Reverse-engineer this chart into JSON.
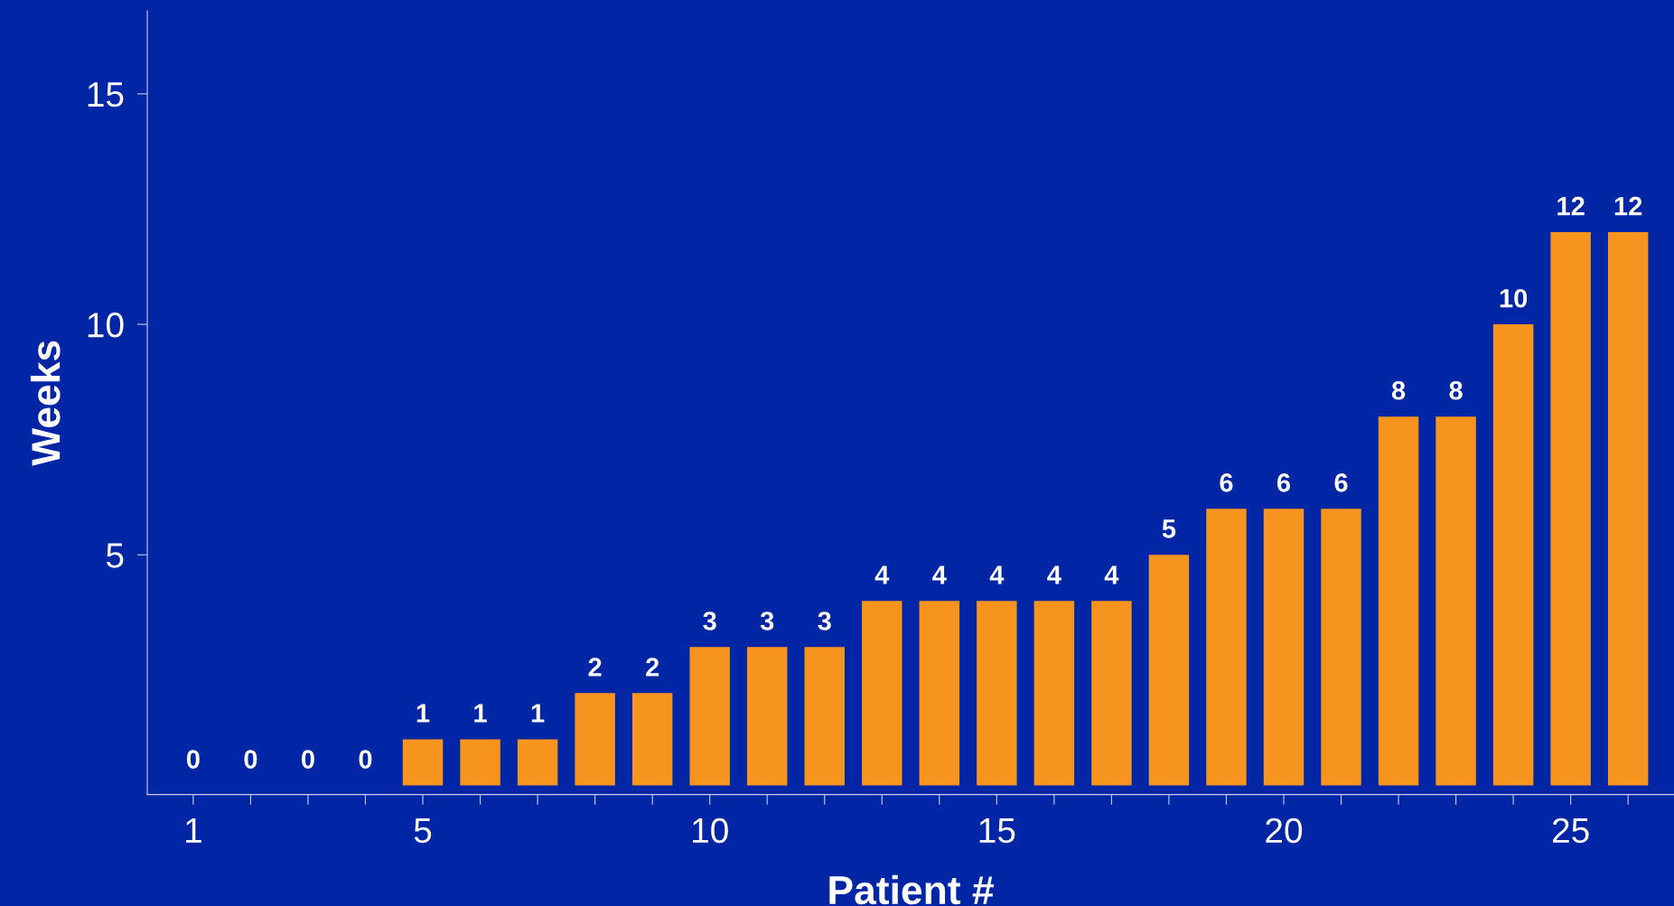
{
  "chart_data": {
    "type": "bar",
    "xlabel": "Patient #",
    "ylabel": "Weeks",
    "x": [
      1,
      2,
      3,
      4,
      5,
      6,
      7,
      8,
      9,
      10,
      11,
      12,
      13,
      14,
      15,
      16,
      17,
      18,
      19,
      20,
      21,
      22,
      23,
      24,
      25,
      26
    ],
    "values": [
      0,
      0,
      0,
      0,
      1,
      1,
      1,
      2,
      2,
      3,
      3,
      3,
      4,
      4,
      4,
      4,
      4,
      5,
      6,
      6,
      6,
      8,
      8,
      10,
      12,
      12
    ],
    "color": "#f7941d",
    "data_labels": true,
    "grid": false,
    "legend": false,
    "xlim": [
      0.2,
      26.8
    ],
    "ylim": [
      -0.2,
      16.8
    ],
    "xticks": [
      1,
      {
        "value": 2,
        "label": null
      },
      {
        "value": 3,
        "label": null
      },
      {
        "value": 4,
        "label": null
      },
      5,
      {
        "value": 6,
        "label": null
      },
      {
        "value": 7,
        "label": null
      },
      {
        "value": 8,
        "label": null
      },
      {
        "value": 9,
        "label": null
      },
      10,
      {
        "value": 11,
        "label": null
      },
      {
        "value": 12,
        "label": null
      },
      {
        "value": 13,
        "label": null
      },
      {
        "value": 14,
        "label": null
      },
      15,
      {
        "value": 16,
        "label": null
      },
      {
        "value": 17,
        "label": null
      },
      {
        "value": 18,
        "label": null
      },
      {
        "value": 19,
        "label": null
      },
      20,
      {
        "value": 21,
        "label": null
      },
      {
        "value": 22,
        "label": null
      },
      {
        "value": 23,
        "label": null
      },
      {
        "value": 24,
        "label": null
      },
      25,
      {
        "value": 26,
        "label": null
      }
    ],
    "yticks": [
      5,
      10,
      15
    ]
  }
}
